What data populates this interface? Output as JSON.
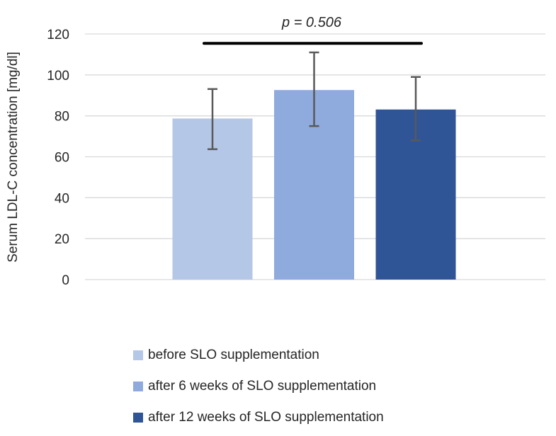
{
  "chart_data": {
    "type": "bar",
    "title": "",
    "xlabel": "",
    "ylabel": "Serum LDL-C concentration [mg/dl]",
    "ylim": [
      0,
      120
    ],
    "yticks": [
      "0",
      "20",
      "40",
      "60",
      "80",
      "100",
      "120"
    ],
    "grid": true,
    "categories": [
      "before SLO supplementation",
      "after 6 weeks of SLO supplementation",
      "after 12 weeks of SLO supplementation"
    ],
    "values": [
      78.7,
      92.6,
      83.1
    ],
    "error_low": [
      63.7,
      75.0,
      68.0
    ],
    "error_high": [
      93.1,
      111.0,
      99.0
    ],
    "colors": [
      "#b4c7e7",
      "#8faadc",
      "#2f5597"
    ],
    "annotation": {
      "text": "p = 0.506",
      "bar_level": 115.4
    },
    "legend_position": "bottom"
  }
}
